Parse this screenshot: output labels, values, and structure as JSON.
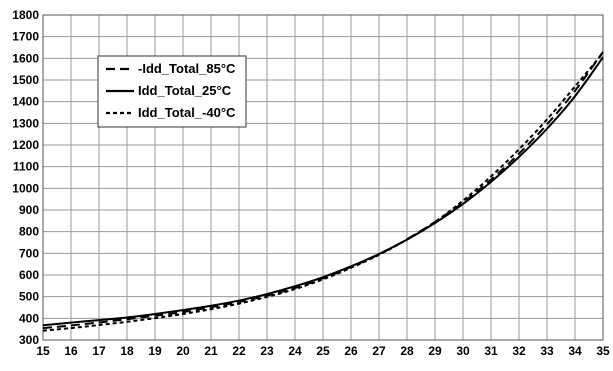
{
  "chart_data": {
    "type": "line",
    "title": "",
    "xlabel": "",
    "ylabel": "",
    "xlim": [
      15,
      35
    ],
    "ylim": [
      300,
      1800
    ],
    "x_ticks": [
      15,
      16,
      17,
      18,
      19,
      20,
      21,
      22,
      23,
      24,
      25,
      26,
      27,
      28,
      29,
      30,
      31,
      32,
      33,
      34,
      35
    ],
    "y_ticks": [
      300,
      400,
      500,
      600,
      700,
      800,
      900,
      1000,
      1100,
      1200,
      1300,
      1400,
      1500,
      1600,
      1700,
      1800
    ],
    "grid": true,
    "legend_position": "top-left",
    "x": [
      15,
      16,
      17,
      18,
      19,
      20,
      21,
      22,
      23,
      24,
      25,
      26,
      27,
      28,
      29,
      30,
      31,
      32,
      33,
      34,
      35
    ],
    "series": [
      {
        "name": "-Idd_Total_85°C",
        "style": "long-dash",
        "values": [
          355,
          367,
          381,
          396,
          412,
          429,
          451,
          475,
          505,
          540,
          585,
          637,
          695,
          765,
          845,
          935,
          1040,
          1160,
          1295,
          1450,
          1630
        ]
      },
      {
        "name": "Idd_Total_25°C",
        "style": "solid",
        "values": [
          368,
          380,
          392,
          404,
          420,
          438,
          458,
          482,
          512,
          548,
          590,
          640,
          697,
          763,
          840,
          928,
          1030,
          1145,
          1275,
          1425,
          1605
        ]
      },
      {
        "name": "Idd_Total_-40°C",
        "style": "short-dash",
        "values": [
          343,
          355,
          369,
          384,
          401,
          420,
          442,
          468,
          499,
          535,
          580,
          633,
          693,
          764,
          845,
          943,
          1055,
          1180,
          1318,
          1470,
          1625
        ]
      }
    ]
  },
  "colors": {
    "line": "#000000",
    "grid": "#9a9a9a",
    "background": "#ffffff"
  }
}
